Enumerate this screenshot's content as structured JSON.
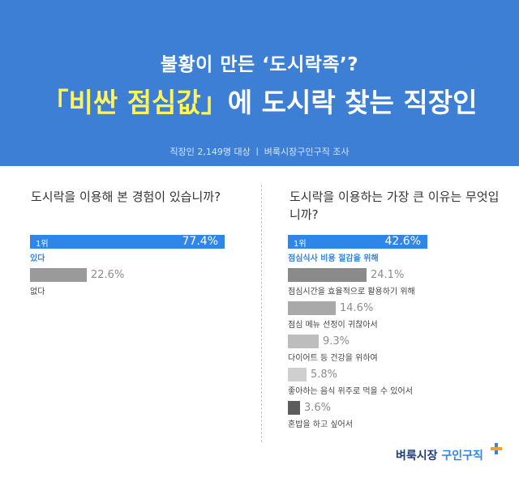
{
  "header": {
    "subtitle": "불황이 만든 ‘도시락족’?",
    "title_pre": "「비싼 점심값」",
    "title_post": "에 도시락 찾는 직장인",
    "source": "직장인 2,149명 대상  ㅣ  벼룩시장구인구직 조사"
  },
  "chart_data": [
    {
      "type": "bar",
      "orientation": "horizontal",
      "title": "도시락을 이용해 본 경험이 있습니까?",
      "rank_label": "1위",
      "categories": [
        "있다",
        "없다"
      ],
      "values": [
        77.4,
        22.6
      ],
      "value_labels": [
        "77.4%",
        "22.6%"
      ]
    },
    {
      "type": "bar",
      "orientation": "horizontal",
      "title": "도시락을 이용하는 가장 큰 이유는 무엇입니까?",
      "rank_label": "1위",
      "categories": [
        "점심식사 비용 절감을 위해",
        "점심시간을 효율적으로 활용하기 위해",
        "점심 메뉴 선정이 귀찮아서",
        "다이어트 등 건강을 위하여",
        "좋아하는 음식 위주로 먹을 수 있어서",
        "혼밥을 하고 싶어서"
      ],
      "values": [
        42.6,
        24.1,
        14.6,
        9.3,
        5.8,
        3.6
      ],
      "value_labels": [
        "42.6%",
        "24.1%",
        "14.6%",
        "9.3%",
        "5.8%",
        "3.6%"
      ]
    }
  ],
  "colors": {
    "header_bg": "#3e7fd6",
    "highlight": "#fff45a",
    "top_bar": "#2f86e8",
    "left_gray_bar": "#9a9a9a",
    "right_gray_bars": [
      "#8a8a8a",
      "#a9a9a9",
      "#bdbdbd",
      "#cfcfcf",
      "#5c5c5c"
    ]
  },
  "logo": {
    "part1": "벼룩시장",
    "part2": "구인구직",
    "icon": "plus-sparkle-icon"
  }
}
